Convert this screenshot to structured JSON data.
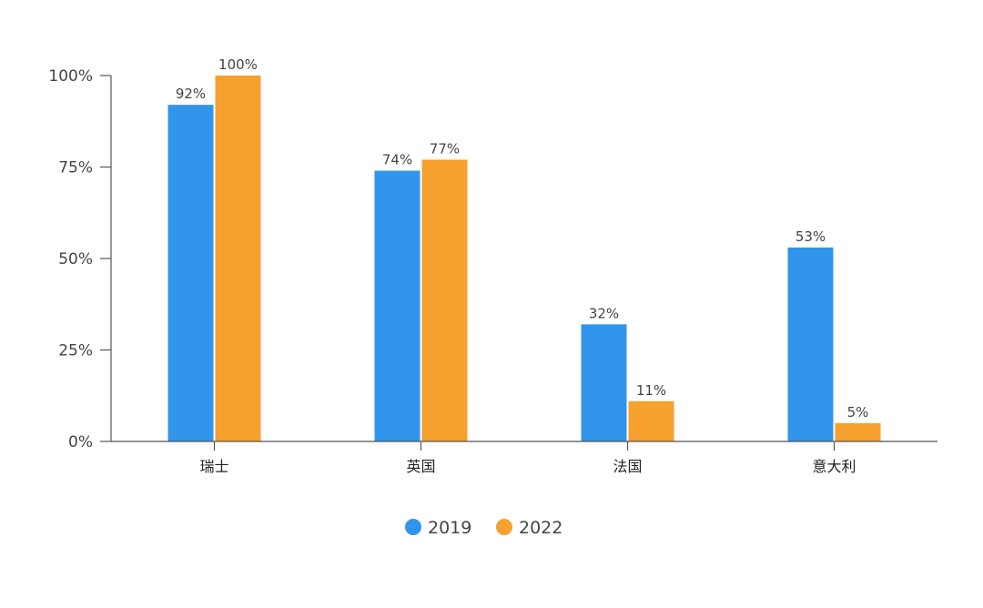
{
  "chart_data": {
    "type": "bar",
    "categories": [
      "瑞士",
      "英国",
      "法国",
      "意大利"
    ],
    "series": [
      {
        "name": "2019",
        "values": [
          92,
          74,
          32,
          53
        ],
        "color": "#3195EC"
      },
      {
        "name": "2022",
        "values": [
          100,
          77,
          11,
          5
        ],
        "color": "#F6A02D"
      }
    ],
    "value_suffix": "%",
    "ylim": [
      0,
      100
    ],
    "yticks": [
      0,
      25,
      50,
      75,
      100
    ],
    "ytick_labels": [
      "0%",
      "25%",
      "50%",
      "75%",
      "100%"
    ],
    "title": "",
    "xlabel": "",
    "ylabel": "",
    "grid": false,
    "legend_position": "bottom-center"
  }
}
